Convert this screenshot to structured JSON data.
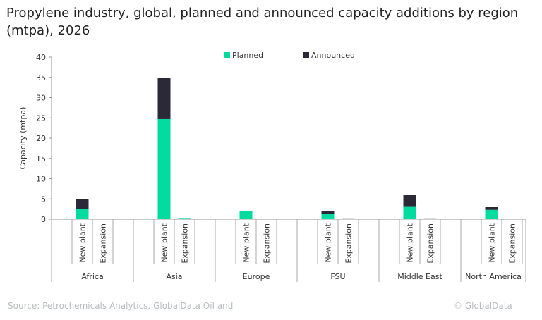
{
  "chart_data": {
    "type": "bar",
    "stacked": true,
    "title": "Propylene industry, global, planned and announced capacity additions by region (mtpa), 2026",
    "xlabel": "",
    "ylabel": "Capacity (mtpa)",
    "ylim": [
      0,
      40
    ],
    "yticks": [
      0,
      5,
      10,
      15,
      20,
      25,
      30,
      35,
      40
    ],
    "grid": false,
    "legend_position": "top",
    "groups": [
      "Africa",
      "Asia",
      "Europe",
      "FSU",
      "Middle East",
      "North America"
    ],
    "subcategories": [
      "New plant",
      "Expansion"
    ],
    "series": [
      {
        "name": "Planned",
        "color": "#00dca0",
        "values": [
          [
            2.6,
            0
          ],
          [
            24.7,
            0.3
          ],
          [
            2.1,
            0.1
          ],
          [
            1.3,
            0
          ],
          [
            3.2,
            0
          ],
          [
            2.3,
            0
          ]
        ]
      },
      {
        "name": "Announced",
        "color": "#2b2838",
        "values": [
          [
            2.4,
            0
          ],
          [
            10.1,
            0
          ],
          [
            0,
            0
          ],
          [
            0.7,
            0.2
          ],
          [
            2.8,
            0.2
          ],
          [
            0.7,
            0
          ]
        ]
      }
    ]
  },
  "footer": {
    "source": "Source: Petrochemicals Analytics, GlobalData Oil and",
    "copyright": "© GlobalData"
  }
}
